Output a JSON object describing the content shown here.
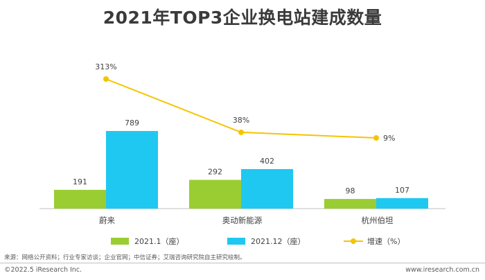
{
  "title": "2021年TOP3企业换电站建成数量",
  "chart_data": {
    "type": "bar",
    "categories": [
      "蔚来",
      "奥动新能源",
      "杭州伯坦"
    ],
    "series": [
      {
        "name": "2021.1（座）",
        "type": "bar",
        "color": "#9acd32",
        "values": [
          191,
          292,
          98
        ]
      },
      {
        "name": "2021.12（座）",
        "type": "bar",
        "color": "#1fc8f0",
        "values": [
          789,
          402,
          107
        ]
      },
      {
        "name": "增速（%）",
        "type": "line",
        "color": "#f5c400",
        "values": [
          313,
          38,
          9
        ],
        "labels": [
          "313%",
          "38%",
          "9%"
        ]
      }
    ],
    "legend_position": "bottom",
    "grid": false
  },
  "source": "来源：网络公开资料；行业专家访谈；企业官网；中信证券；艾瑞咨询研究院自主研究绘制。",
  "copyright": "©2022.5 iResearch Inc.",
  "website": "www.iresearch.com.cn"
}
